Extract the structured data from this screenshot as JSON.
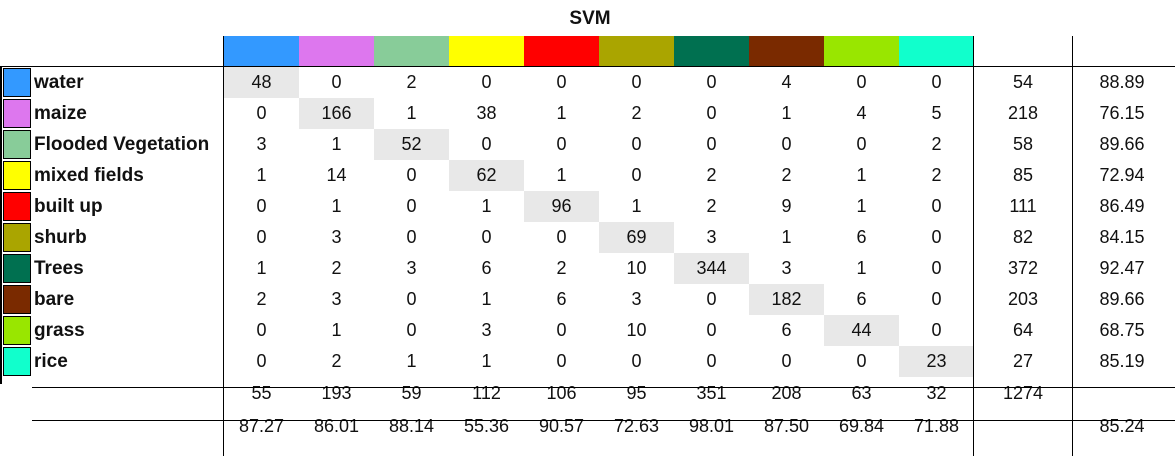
{
  "title": "SVM",
  "classes": [
    {
      "name": "water",
      "color": "#3399ff"
    },
    {
      "name": "maize",
      "color": "#dd77ee"
    },
    {
      "name": "Flooded Vegetation",
      "color": "#88cc99"
    },
    {
      "name": "mixed fields",
      "color": "#ffff00"
    },
    {
      "name": "built up",
      "color": "#ff0000"
    },
    {
      "name": "shurb",
      "color": "#aaa500"
    },
    {
      "name": "Trees",
      "color": "#007050"
    },
    {
      "name": "bare",
      "color": "#7a2a00"
    },
    {
      "name": "grass",
      "color": "#99e600"
    },
    {
      "name": "rice",
      "color": "#11ffcc"
    }
  ],
  "matrix": [
    [
      48,
      0,
      2,
      0,
      0,
      0,
      0,
      4,
      0,
      0
    ],
    [
      0,
      166,
      1,
      38,
      1,
      2,
      0,
      1,
      4,
      5
    ],
    [
      3,
      1,
      52,
      0,
      0,
      0,
      0,
      0,
      0,
      2
    ],
    [
      1,
      14,
      0,
      62,
      1,
      0,
      2,
      2,
      1,
      2
    ],
    [
      0,
      1,
      0,
      1,
      96,
      1,
      2,
      9,
      1,
      0
    ],
    [
      0,
      3,
      0,
      0,
      0,
      69,
      3,
      1,
      6,
      0
    ],
    [
      1,
      2,
      3,
      6,
      2,
      10,
      344,
      3,
      1,
      0
    ],
    [
      2,
      3,
      0,
      1,
      6,
      3,
      0,
      182,
      6,
      0
    ],
    [
      0,
      1,
      0,
      3,
      0,
      10,
      0,
      6,
      44,
      0
    ],
    [
      0,
      2,
      1,
      1,
      0,
      0,
      0,
      0,
      0,
      23
    ]
  ],
  "row_totals": [
    "54",
    "218",
    "58",
    "85",
    "111",
    "82",
    "372",
    "203",
    "64",
    "27"
  ],
  "row_accuracy": [
    "88.89",
    "76.15",
    "89.66",
    "72.94",
    "86.49",
    "84.15",
    "92.47",
    "89.66",
    "68.75",
    "85.19"
  ],
  "col_totals": [
    "55",
    "193",
    "59",
    "112",
    "106",
    "95",
    "351",
    "208",
    "63",
    "32"
  ],
  "grand_total": "1274",
  "col_accuracy": [
    "87.27",
    "86.01",
    "88.14",
    "55.36",
    "90.57",
    "72.63",
    "98.01",
    "87.50",
    "69.84",
    "71.88"
  ],
  "overall_accuracy": "85.24"
}
